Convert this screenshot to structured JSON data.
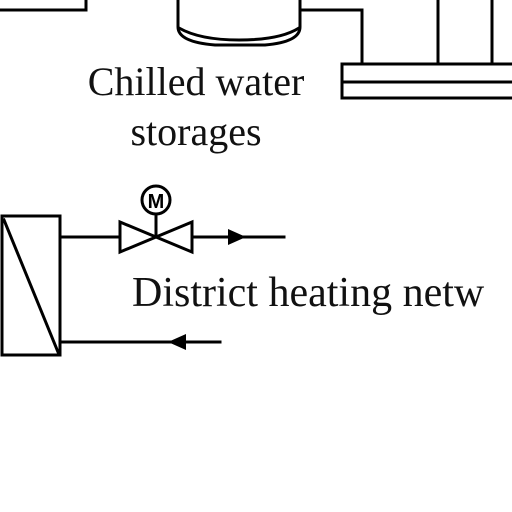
{
  "labels": {
    "chilled_water": "Chilled water",
    "storages": "storages",
    "district_heating": "District heating netw",
    "motor_symbol": "M"
  },
  "colors": {
    "line": "#000000",
    "background": "#ffffff"
  },
  "symbols": [
    "storage-tank-icon",
    "heat-exchanger-icon",
    "motorized-valve-icon",
    "flow-arrow-icon"
  ]
}
